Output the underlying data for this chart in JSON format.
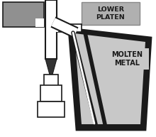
{
  "bg_color": "#ffffff",
  "gray_color": "#909090",
  "white_color": "#ffffff",
  "black_color": "#1a1a1a",
  "light_gray": "#c8c8c8",
  "dark_gray": "#333333",
  "label_gray": "#b0b0b0",
  "lower_platen_text": "LOWER\nPLATEN",
  "molten_metal_text": "MOLTEN\nMETAL",
  "figsize": [
    2.2,
    1.93
  ],
  "dpi": 100,
  "xlim": [
    0,
    220
  ],
  "ylim": [
    0,
    193
  ]
}
